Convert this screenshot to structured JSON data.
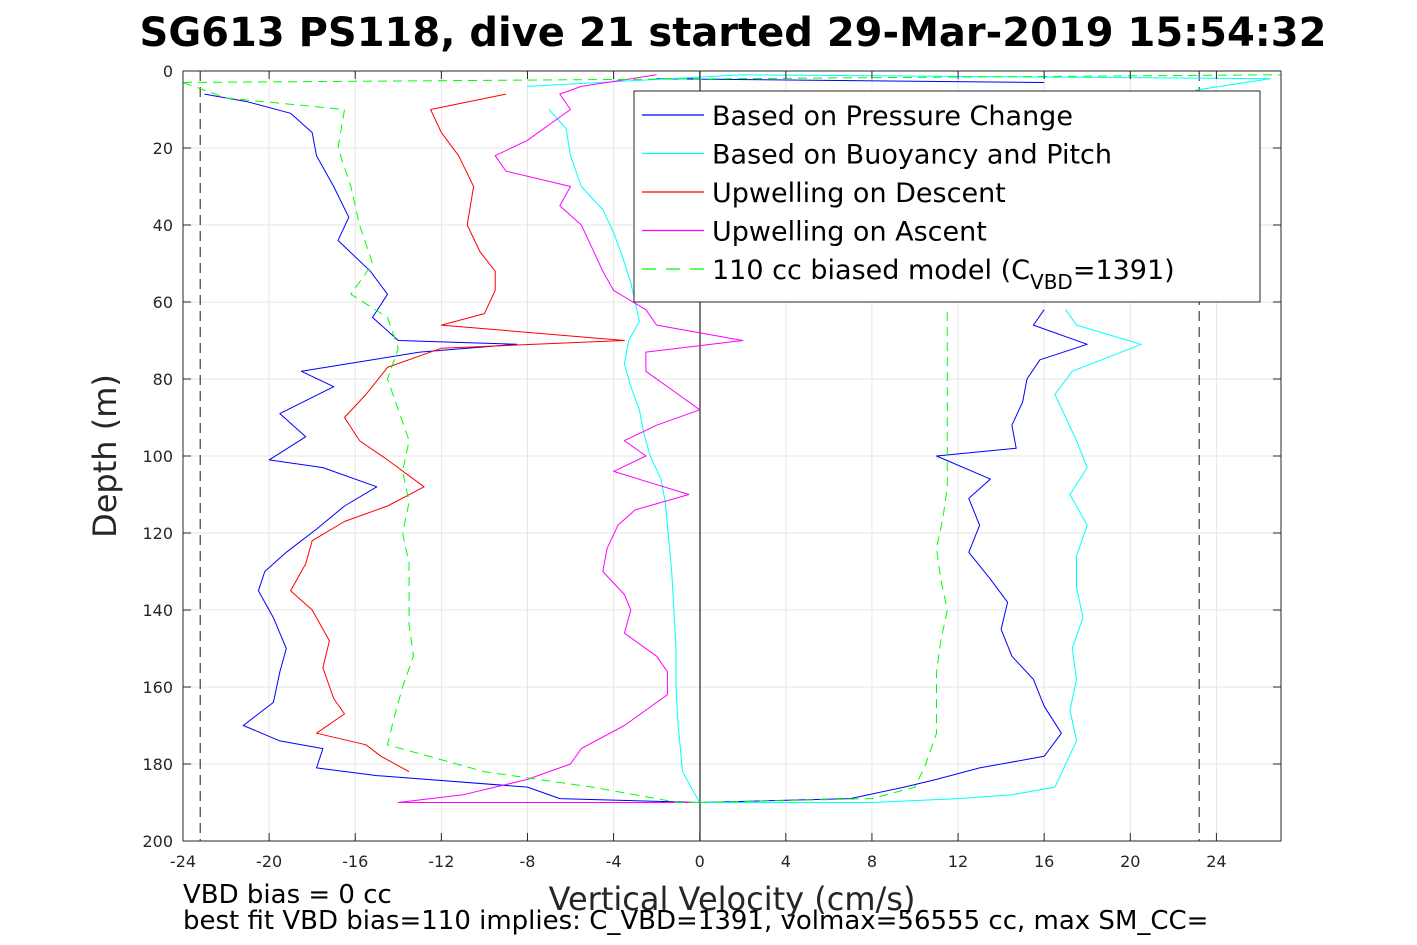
{
  "chart_data": {
    "type": "line",
    "title": "SG613 PS118, dive 21 started 29-Mar-2019 15:54:32",
    "xlabel": "Vertical Velocity (cm/s)",
    "ylabel": "Depth (m)",
    "xlim": [
      -24,
      27
    ],
    "ylim": [
      0,
      200
    ],
    "y_reversed": true,
    "grid": true,
    "x_ticks": [
      -24,
      -20,
      -16,
      -12,
      -8,
      -4,
      0,
      4,
      8,
      12,
      16,
      20,
      24
    ],
    "x_tick_labels": [
      "-24",
      "-20",
      "-16",
      "-12",
      "-8",
      "-4",
      "0",
      "4",
      "8",
      "12",
      "16",
      "20",
      "24"
    ],
    "y_ticks": [
      0,
      20,
      40,
      60,
      80,
      100,
      120,
      140,
      160,
      180,
      200
    ],
    "y_tick_labels": [
      "0",
      "20",
      "40",
      "60",
      "80",
      "100",
      "120",
      "140",
      "160",
      "180",
      "200"
    ],
    "reference_lines_x": [
      -23.2,
      23.2
    ],
    "legend_placement": "top-right",
    "legend": [
      {
        "label": "Based on Pressure Change",
        "color": "#0000ff",
        "dash": "solid"
      },
      {
        "label": "Based on Buoyancy and Pitch",
        "color": "#00ffff",
        "dash": "solid"
      },
      {
        "label": "Upwelling on Descent",
        "color": "#ff0000",
        "dash": "solid"
      },
      {
        "label": "Upwelling on Ascent",
        "color": "#ff00ff",
        "dash": "solid"
      },
      {
        "label_prefix": "110 cc biased model (C",
        "label_sub": "VBD",
        "label_suffix": "=1391)",
        "color": "#00ff00",
        "dash": "dashed"
      }
    ],
    "series": [
      {
        "legend_index": 0,
        "color": "#0000ff",
        "points": [
          [
            -23,
            6
          ],
          [
            -21,
            8
          ],
          [
            -19,
            11
          ],
          [
            -18,
            16
          ],
          [
            -17.8,
            22
          ],
          [
            -17,
            30
          ],
          [
            -16.3,
            38
          ],
          [
            -16.8,
            44
          ],
          [
            -15.3,
            52
          ],
          [
            -14.5,
            58
          ],
          [
            -15.2,
            64
          ],
          [
            -14,
            70
          ],
          [
            -8.5,
            71
          ],
          [
            -13,
            73
          ],
          [
            -18.5,
            78
          ],
          [
            -17,
            82
          ],
          [
            -19.5,
            89
          ],
          [
            -18.3,
            95
          ],
          [
            -20,
            101
          ],
          [
            -17.5,
            103
          ],
          [
            -15,
            108
          ],
          [
            -16.5,
            113
          ],
          [
            -17.8,
            119
          ],
          [
            -19.2,
            125
          ],
          [
            -20.2,
            130
          ],
          [
            -20.5,
            135
          ],
          [
            -19.8,
            142
          ],
          [
            -19.2,
            150
          ],
          [
            -19.5,
            156
          ],
          [
            -19.8,
            164
          ],
          [
            -21.2,
            170
          ],
          [
            -19.5,
            174
          ],
          [
            -17.5,
            176
          ],
          [
            -17.8,
            181
          ],
          [
            -15,
            183
          ],
          [
            -8,
            186
          ],
          [
            -6.5,
            189
          ],
          [
            0,
            190
          ]
        ]
      },
      {
        "legend_index": 0,
        "color": "#0000ff",
        "points": [
          [
            0,
            190
          ],
          [
            7,
            189
          ],
          [
            9.5,
            186
          ],
          [
            11,
            184
          ],
          [
            13,
            181
          ],
          [
            16,
            178
          ],
          [
            16.8,
            172
          ],
          [
            16,
            165
          ],
          [
            15.5,
            158
          ],
          [
            14.5,
            152
          ],
          [
            14,
            145
          ],
          [
            14.3,
            138
          ],
          [
            13.5,
            132
          ],
          [
            12.5,
            125
          ],
          [
            13,
            118
          ],
          [
            12.5,
            111
          ],
          [
            13.5,
            106
          ],
          [
            11,
            100
          ],
          [
            14.7,
            98
          ],
          [
            14.5,
            92
          ],
          [
            15,
            86
          ],
          [
            15.2,
            80
          ],
          [
            15.8,
            75
          ],
          [
            18,
            71
          ],
          [
            15.5,
            66
          ],
          [
            16,
            62
          ]
        ]
      },
      {
        "legend_index": 0,
        "color": "#0000ff",
        "points": [
          [
            16,
            3
          ],
          [
            -2,
            2
          ],
          [
            0,
            2
          ]
        ]
      },
      {
        "legend_index": 1,
        "color": "#00ffff",
        "points": [
          [
            -7,
            10
          ],
          [
            -6.2,
            15
          ],
          [
            -6,
            22
          ],
          [
            -5.5,
            30
          ],
          [
            -4.5,
            36
          ],
          [
            -4,
            42
          ],
          [
            -3.6,
            48
          ],
          [
            -3.2,
            55
          ],
          [
            -3,
            60
          ],
          [
            -2.8,
            65
          ],
          [
            -3.3,
            70
          ],
          [
            -3.5,
            76
          ],
          [
            -3.2,
            82
          ],
          [
            -2.8,
            88
          ],
          [
            -2.6,
            94
          ],
          [
            -2.3,
            100
          ],
          [
            -1.8,
            106
          ],
          [
            -1.6,
            112
          ],
          [
            -1.5,
            118
          ],
          [
            -1.4,
            124
          ],
          [
            -1.3,
            130
          ],
          [
            -1.2,
            140
          ],
          [
            -1.1,
            150
          ],
          [
            -1.1,
            160
          ],
          [
            -1,
            170
          ],
          [
            -0.8,
            182
          ],
          [
            0,
            190
          ]
        ]
      },
      {
        "legend_index": 1,
        "color": "#00ffff",
        "points": [
          [
            0,
            190
          ],
          [
            8,
            190
          ],
          [
            12,
            189
          ],
          [
            14.5,
            188
          ],
          [
            16.5,
            186
          ],
          [
            17,
            180
          ],
          [
            17.5,
            174
          ],
          [
            17.2,
            166
          ],
          [
            17.5,
            158
          ],
          [
            17.3,
            150
          ],
          [
            17.8,
            142
          ],
          [
            17.5,
            134
          ],
          [
            17.5,
            126
          ],
          [
            18,
            118
          ],
          [
            17.2,
            110
          ],
          [
            18,
            103
          ],
          [
            17.5,
            96
          ],
          [
            17,
            90
          ],
          [
            16.5,
            84
          ],
          [
            17.3,
            78
          ],
          [
            20.5,
            71
          ],
          [
            17.5,
            66
          ],
          [
            17,
            62
          ]
        ]
      },
      {
        "legend_index": 1,
        "color": "#00ffff",
        "points": [
          [
            -8,
            4
          ],
          [
            2,
            1
          ],
          [
            26.5,
            2
          ],
          [
            23,
            5
          ]
        ]
      },
      {
        "legend_index": 2,
        "color": "#ff0000",
        "points": [
          [
            -9,
            6
          ],
          [
            -12.5,
            10
          ],
          [
            -12,
            16
          ],
          [
            -11.2,
            22
          ],
          [
            -10.5,
            30
          ],
          [
            -10.8,
            40
          ],
          [
            -10.2,
            47
          ],
          [
            -9.5,
            52
          ],
          [
            -9.5,
            57
          ],
          [
            -10,
            63
          ],
          [
            -12,
            66
          ],
          [
            -3.5,
            70
          ],
          [
            -12,
            72
          ],
          [
            -14.5,
            77
          ],
          [
            -15.5,
            84
          ],
          [
            -16.5,
            90
          ],
          [
            -15.8,
            96
          ],
          [
            -14.5,
            101
          ],
          [
            -12.8,
            108
          ],
          [
            -14.5,
            113
          ],
          [
            -16.5,
            117
          ],
          [
            -18,
            122
          ],
          [
            -18.3,
            128
          ],
          [
            -19,
            135
          ],
          [
            -18,
            140
          ],
          [
            -17.2,
            148
          ],
          [
            -17.5,
            155
          ],
          [
            -17,
            163
          ],
          [
            -16.5,
            167
          ],
          [
            -17.8,
            172
          ],
          [
            -15.5,
            175
          ],
          [
            -14.8,
            178
          ],
          [
            -13.5,
            182
          ]
        ]
      },
      {
        "legend_index": 3,
        "color": "#ff00ff",
        "points": [
          [
            -2,
            1
          ],
          [
            -5.5,
            4
          ],
          [
            -6.5,
            6
          ],
          [
            -6,
            10
          ],
          [
            -7,
            14
          ],
          [
            -8,
            18
          ],
          [
            -9.5,
            22
          ],
          [
            -9,
            26
          ],
          [
            -6,
            30
          ],
          [
            -6.5,
            35
          ],
          [
            -5.5,
            40
          ],
          [
            -5,
            46
          ],
          [
            -4.5,
            52
          ],
          [
            -4,
            57
          ],
          [
            -2.5,
            62
          ],
          [
            -2,
            66
          ],
          [
            2,
            70
          ],
          [
            -2.5,
            73
          ],
          [
            -2.5,
            78
          ],
          [
            -1,
            84
          ],
          [
            0,
            88
          ],
          [
            -2,
            92
          ],
          [
            -3.5,
            96
          ],
          [
            -2.5,
            100
          ],
          [
            -4,
            104
          ],
          [
            -0.5,
            110
          ],
          [
            -3,
            114
          ],
          [
            -3.8,
            118
          ],
          [
            -4.3,
            124
          ],
          [
            -4.5,
            130
          ],
          [
            -3.5,
            136
          ],
          [
            -3.2,
            140
          ],
          [
            -3.5,
            146
          ],
          [
            -2,
            152
          ],
          [
            -1.5,
            156
          ],
          [
            -1.5,
            162
          ],
          [
            -2.5,
            166
          ],
          [
            -3.5,
            170
          ],
          [
            -5.5,
            176
          ],
          [
            -6,
            180
          ],
          [
            -8,
            184
          ],
          [
            -11,
            188
          ],
          [
            -14,
            190
          ],
          [
            0,
            190
          ]
        ]
      },
      {
        "legend_index": 4,
        "color": "#00ff00",
        "dash": "dashed",
        "points": [
          [
            -24,
            3
          ],
          [
            -22,
            7
          ],
          [
            -16.5,
            10
          ],
          [
            -16.8,
            20
          ],
          [
            -16.2,
            30
          ],
          [
            -15.8,
            40
          ],
          [
            -15.2,
            50
          ],
          [
            -16.2,
            58
          ],
          [
            -14.5,
            64
          ],
          [
            -14,
            72
          ],
          [
            -14.5,
            80
          ],
          [
            -14,
            88
          ],
          [
            -13.5,
            96
          ],
          [
            -13.8,
            104
          ],
          [
            -13.5,
            112
          ],
          [
            -13.8,
            120
          ],
          [
            -13.5,
            128
          ],
          [
            -13.5,
            136
          ],
          [
            -13.5,
            144
          ],
          [
            -13.3,
            152
          ],
          [
            -13.8,
            160
          ],
          [
            -14.2,
            168
          ],
          [
            -14.5,
            175
          ],
          [
            -10,
            182
          ],
          [
            -5,
            186
          ],
          [
            -1,
            190
          ],
          [
            0,
            190
          ]
        ]
      },
      {
        "legend_index": 4,
        "color": "#00ff00",
        "dash": "dashed",
        "points": [
          [
            0,
            190
          ],
          [
            8,
            189
          ],
          [
            10,
            186
          ],
          [
            10.5,
            180
          ],
          [
            11,
            172
          ],
          [
            11,
            164
          ],
          [
            11,
            156
          ],
          [
            11.2,
            148
          ],
          [
            11.5,
            140
          ],
          [
            11.2,
            132
          ],
          [
            11,
            124
          ],
          [
            11.3,
            116
          ],
          [
            11.5,
            108
          ],
          [
            11.5,
            100
          ],
          [
            11.5,
            92
          ],
          [
            11.5,
            84
          ],
          [
            11.5,
            76
          ],
          [
            11.5,
            68
          ],
          [
            11.5,
            62
          ]
        ]
      },
      {
        "legend_index": 4,
        "color": "#00ff00",
        "dash": "dashed",
        "points": [
          [
            -24,
            3
          ],
          [
            27,
            1
          ]
        ]
      }
    ]
  },
  "notes": [
    "VBD bias = 0 cc",
    "best fit VBD bias=110 implies: C_VBD=1391, volmax=56555 cc, max SM_CC="
  ]
}
